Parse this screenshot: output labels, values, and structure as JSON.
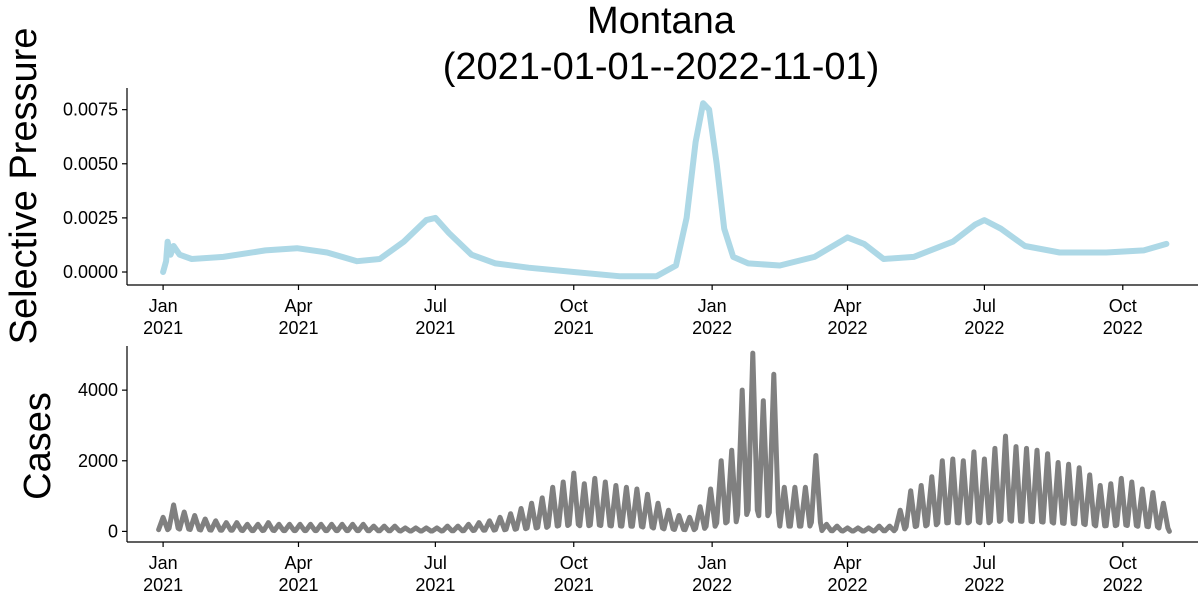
{
  "chart_data": [
    {
      "type": "line",
      "title_line1": "Montana",
      "title_line2": "(2021-01-01--2022-11-01)",
      "xlabel": "",
      "ylabel": "Selective Pressure",
      "ylim": [
        -0.0006,
        0.0085
      ],
      "xlim": [
        "2020-12-08",
        "2022-11-20"
      ],
      "yticks": [
        {
          "value": 0.0,
          "label": "0.0000"
        },
        {
          "value": 0.0025,
          "label": "0.0025"
        },
        {
          "value": 0.005,
          "label": "0.0050"
        },
        {
          "value": 0.0075,
          "label": "0.0075"
        }
      ],
      "xticks": [
        {
          "date": "2021-01-01",
          "line1": "Jan",
          "line2": "2021"
        },
        {
          "date": "2021-04-01",
          "line1": "Apr",
          "line2": "2021"
        },
        {
          "date": "2021-07-01",
          "line1": "Jul",
          "line2": "2021"
        },
        {
          "date": "2021-10-01",
          "line1": "Oct",
          "line2": "2021"
        },
        {
          "date": "2022-01-01",
          "line1": "Jan",
          "line2": "2022"
        },
        {
          "date": "2022-04-01",
          "line1": "Apr",
          "line2": "2022"
        },
        {
          "date": "2022-07-01",
          "line1": "Jul",
          "line2": "2022"
        },
        {
          "date": "2022-10-01",
          "line1": "Oct",
          "line2": "2022"
        }
      ],
      "grid": false,
      "series": [
        {
          "color": "#add8e6",
          "points": [
            [
              "2021-01-01",
              0.0
            ],
            [
              "2021-01-03",
              0.0005
            ],
            [
              "2021-01-04",
              0.0014
            ],
            [
              "2021-01-06",
              0.0008
            ],
            [
              "2021-01-08",
              0.0012
            ],
            [
              "2021-01-12",
              0.0008
            ],
            [
              "2021-01-20",
              0.0006
            ],
            [
              "2021-02-10",
              0.0007
            ],
            [
              "2021-03-10",
              0.001
            ],
            [
              "2021-03-31",
              0.0011
            ],
            [
              "2021-04-20",
              0.0009
            ],
            [
              "2021-05-10",
              0.0005
            ],
            [
              "2021-05-25",
              0.0006
            ],
            [
              "2021-06-10",
              0.0014
            ],
            [
              "2021-06-25",
              0.0024
            ],
            [
              "2021-07-01",
              0.0025
            ],
            [
              "2021-07-10",
              0.0018
            ],
            [
              "2021-07-25",
              0.0008
            ],
            [
              "2021-08-10",
              0.0004
            ],
            [
              "2021-09-01",
              0.0002
            ],
            [
              "2021-10-01",
              0.0
            ],
            [
              "2021-11-01",
              -0.0002
            ],
            [
              "2021-11-25",
              -0.0002
            ],
            [
              "2021-12-08",
              0.0003
            ],
            [
              "2021-12-15",
              0.0025
            ],
            [
              "2021-12-21",
              0.006
            ],
            [
              "2021-12-26",
              0.0078
            ],
            [
              "2021-12-30",
              0.0075
            ],
            [
              "2022-01-04",
              0.005
            ],
            [
              "2022-01-09",
              0.002
            ],
            [
              "2022-01-15",
              0.0007
            ],
            [
              "2022-01-25",
              0.0004
            ],
            [
              "2022-02-15",
              0.0003
            ],
            [
              "2022-03-10",
              0.0007
            ],
            [
              "2022-04-01",
              0.0016
            ],
            [
              "2022-04-12",
              0.0013
            ],
            [
              "2022-04-25",
              0.0006
            ],
            [
              "2022-05-15",
              0.0007
            ],
            [
              "2022-06-10",
              0.0014
            ],
            [
              "2022-06-25",
              0.0022
            ],
            [
              "2022-07-01",
              0.0024
            ],
            [
              "2022-07-12",
              0.002
            ],
            [
              "2022-07-28",
              0.0012
            ],
            [
              "2022-08-20",
              0.0009
            ],
            [
              "2022-09-20",
              0.0009
            ],
            [
              "2022-10-15",
              0.001
            ],
            [
              "2022-10-30",
              0.0013
            ]
          ]
        }
      ]
    },
    {
      "type": "line",
      "xlabel": "",
      "ylabel": "Cases",
      "ylim": [
        -300,
        5250
      ],
      "xlim": [
        "2020-12-08",
        "2022-11-20"
      ],
      "yticks": [
        {
          "value": 0,
          "label": "0"
        },
        {
          "value": 2000,
          "label": "2000"
        },
        {
          "value": 4000,
          "label": "4000"
        }
      ],
      "xticks": [
        {
          "date": "2021-01-01",
          "line1": "Jan",
          "line2": "2021"
        },
        {
          "date": "2021-04-01",
          "line1": "Apr",
          "line2": "2021"
        },
        {
          "date": "2021-07-01",
          "line1": "Jul",
          "line2": "2021"
        },
        {
          "date": "2021-10-01",
          "line1": "Oct",
          "line2": "2021"
        },
        {
          "date": "2022-01-01",
          "line1": "Jan",
          "line2": "2022"
        },
        {
          "date": "2022-04-01",
          "line1": "Apr",
          "line2": "2022"
        },
        {
          "date": "2022-07-01",
          "line1": "Jul",
          "line2": "2022"
        },
        {
          "date": "2022-10-01",
          "line1": "Oct",
          "line2": "2022"
        }
      ],
      "grid": false,
      "series": [
        {
          "color": "#808080",
          "weekly_peaks": [
            [
              "2021-01-01",
              400
            ],
            [
              "2021-01-08",
              750
            ],
            [
              "2021-01-15",
              550
            ],
            [
              "2021-01-22",
              450
            ],
            [
              "2021-01-29",
              350
            ],
            [
              "2021-02-05",
              300
            ],
            [
              "2021-02-12",
              250
            ],
            [
              "2021-02-19",
              250
            ],
            [
              "2021-02-26",
              200
            ],
            [
              "2021-03-05",
              200
            ],
            [
              "2021-03-12",
              250
            ],
            [
              "2021-03-19",
              200
            ],
            [
              "2021-03-26",
              200
            ],
            [
              "2021-04-02",
              200
            ],
            [
              "2021-04-09",
              200
            ],
            [
              "2021-04-16",
              200
            ],
            [
              "2021-04-23",
              200
            ],
            [
              "2021-04-30",
              200
            ],
            [
              "2021-05-07",
              200
            ],
            [
              "2021-05-14",
              200
            ],
            [
              "2021-05-21",
              150
            ],
            [
              "2021-05-28",
              150
            ],
            [
              "2021-06-04",
              150
            ],
            [
              "2021-06-11",
              100
            ],
            [
              "2021-06-18",
              100
            ],
            [
              "2021-06-25",
              100
            ],
            [
              "2021-07-02",
              100
            ],
            [
              "2021-07-09",
              150
            ],
            [
              "2021-07-16",
              150
            ],
            [
              "2021-07-23",
              200
            ],
            [
              "2021-07-30",
              250
            ],
            [
              "2021-08-06",
              300
            ],
            [
              "2021-08-13",
              400
            ],
            [
              "2021-08-20",
              500
            ],
            [
              "2021-08-27",
              650
            ],
            [
              "2021-09-03",
              800
            ],
            [
              "2021-09-10",
              950
            ],
            [
              "2021-09-17",
              1250
            ],
            [
              "2021-09-24",
              1400
            ],
            [
              "2021-10-01",
              1650
            ],
            [
              "2021-10-08",
              1350
            ],
            [
              "2021-10-15",
              1500
            ],
            [
              "2021-10-22",
              1400
            ],
            [
              "2021-10-29",
              1300
            ],
            [
              "2021-11-05",
              1250
            ],
            [
              "2021-11-12",
              1200
            ],
            [
              "2021-11-19",
              1050
            ],
            [
              "2021-11-26",
              800
            ],
            [
              "2021-12-03",
              600
            ],
            [
              "2021-12-10",
              450
            ],
            [
              "2021-12-17",
              400
            ],
            [
              "2021-12-24",
              700
            ],
            [
              "2021-12-31",
              1200
            ],
            [
              "2022-01-07",
              2000
            ],
            [
              "2022-01-14",
              2300
            ],
            [
              "2022-01-21",
              4000
            ],
            [
              "2022-01-28",
              5050
            ],
            [
              "2022-02-04",
              3700
            ],
            [
              "2022-02-11",
              4450
            ],
            [
              "2022-02-18",
              1250
            ],
            [
              "2022-02-25",
              1250
            ],
            [
              "2022-03-04",
              1250
            ],
            [
              "2022-03-11",
              2150
            ],
            [
              "2022-03-18",
              200
            ],
            [
              "2022-03-25",
              150
            ],
            [
              "2022-04-01",
              100
            ],
            [
              "2022-04-08",
              100
            ],
            [
              "2022-04-15",
              100
            ],
            [
              "2022-04-22",
              150
            ],
            [
              "2022-04-29",
              150
            ],
            [
              "2022-05-06",
              600
            ],
            [
              "2022-05-13",
              1150
            ],
            [
              "2022-05-20",
              1300
            ],
            [
              "2022-05-27",
              1550
            ],
            [
              "2022-06-03",
              2000
            ],
            [
              "2022-06-10",
              2050
            ],
            [
              "2022-06-17",
              2000
            ],
            [
              "2022-06-24",
              2250
            ],
            [
              "2022-07-01",
              2050
            ],
            [
              "2022-07-08",
              2350
            ],
            [
              "2022-07-15",
              2700
            ],
            [
              "2022-07-22",
              2400
            ],
            [
              "2022-07-29",
              2350
            ],
            [
              "2022-08-05",
              2300
            ],
            [
              "2022-08-12",
              2200
            ],
            [
              "2022-08-19",
              1950
            ],
            [
              "2022-08-26",
              1900
            ],
            [
              "2022-09-02",
              1800
            ],
            [
              "2022-09-09",
              1600
            ],
            [
              "2022-09-16",
              1300
            ],
            [
              "2022-09-23",
              1350
            ],
            [
              "2022-09-30",
              1500
            ],
            [
              "2022-10-07",
              1400
            ],
            [
              "2022-10-14",
              1200
            ],
            [
              "2022-10-21",
              1100
            ],
            [
              "2022-10-28",
              800
            ]
          ],
          "last_date": "2022-11-01"
        }
      ]
    }
  ]
}
